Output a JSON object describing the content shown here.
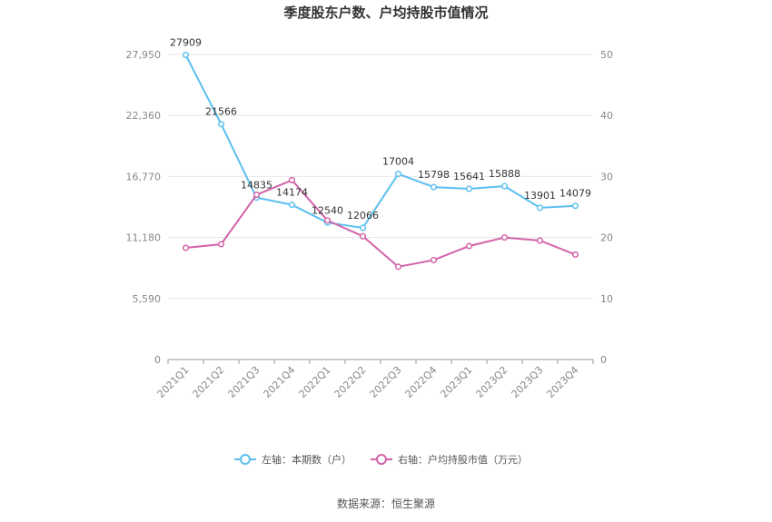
{
  "chart_data": {
    "type": "line",
    "title": "季度股东户数、户均持股市值情况",
    "categories": [
      "2021Q1",
      "2021Q2",
      "2021Q3",
      "2021Q4",
      "2022Q1",
      "2022Q2",
      "2022Q3",
      "2022Q4",
      "2023Q1",
      "2023Q2",
      "2023Q3",
      "2023Q4"
    ],
    "left_axis": {
      "ticks": [
        "0",
        "5,590",
        "11,180",
        "16,770",
        "22,360",
        "27,950"
      ],
      "ylim": [
        0,
        27950
      ]
    },
    "right_axis": {
      "ticks": [
        "0",
        "10",
        "20",
        "30",
        "40",
        "50"
      ],
      "ylim": [
        0,
        50
      ]
    },
    "series": [
      {
        "name": "左轴：本期数（户）",
        "axis": "left",
        "color": "#5bbfef",
        "values": [
          27909,
          21566,
          14835,
          14174,
          12540,
          12066,
          17004,
          15798,
          15641,
          15888,
          13901,
          14079
        ],
        "labels": [
          "27909",
          "21566",
          "14835",
          "14174",
          "12540",
          "12066",
          "17004",
          "15798",
          "15641",
          "15888",
          "13901",
          "14079"
        ]
      },
      {
        "name": "右轴：户均持股市值（万元）",
        "axis": "right",
        "color": "#d262a8",
        "values": [
          18.3,
          18.9,
          27.0,
          29.4,
          22.8,
          20.2,
          15.2,
          16.3,
          18.6,
          20.0,
          19.5,
          17.2
        ]
      }
    ],
    "legend_position": "bottom",
    "grid": true
  },
  "source_text": "数据来源：恒生聚源"
}
